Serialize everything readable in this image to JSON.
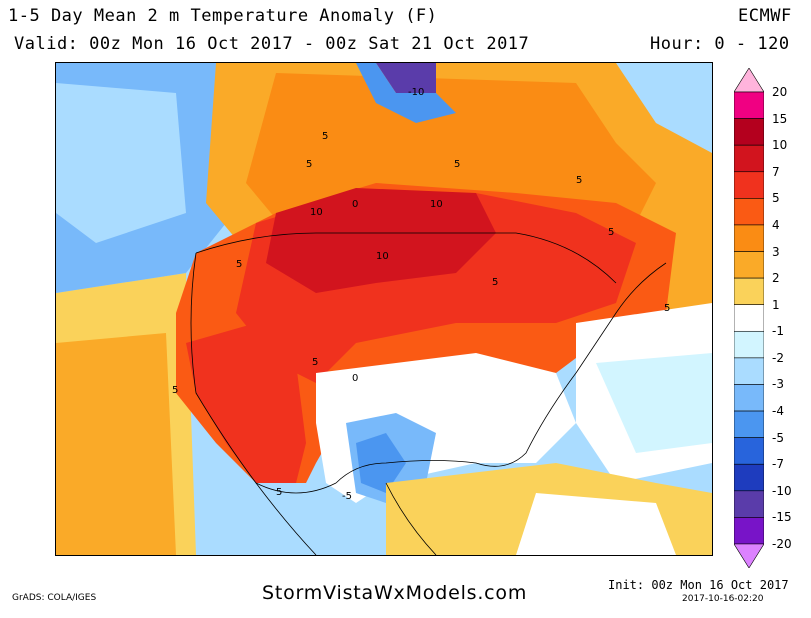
{
  "header": {
    "title": "1-5 Day Mean 2 m Temperature Anomaly (F)",
    "model": "ECMWF",
    "valid": "Valid: 00z Mon 16 Oct 2017 - 00z Sat 21 Oct 2017",
    "hour": "Hour: 0 - 120"
  },
  "colorbar": {
    "levels": [
      {
        "label": "20",
        "color": "#f00082"
      },
      {
        "label": "15",
        "color": "#b4001e"
      },
      {
        "label": "10",
        "color": "#d2141e"
      },
      {
        "label": "7",
        "color": "#f0321e"
      },
      {
        "label": "5",
        "color": "#fa5a14"
      },
      {
        "label": "4",
        "color": "#fa8c14"
      },
      {
        "label": "3",
        "color": "#faaa28"
      },
      {
        "label": "2",
        "color": "#fad25a"
      },
      {
        "label": "1",
        "color": "#ffffff"
      },
      {
        "label": "-1",
        "color": "#d2f5ff"
      },
      {
        "label": "-2",
        "color": "#aadcff"
      },
      {
        "label": "-3",
        "color": "#78b9fa"
      },
      {
        "label": "-4",
        "color": "#4b96f0"
      },
      {
        "label": "-5",
        "color": "#2864dc"
      },
      {
        "label": "-7",
        "color": "#1e3cbe"
      },
      {
        "label": "-10",
        "color": "#5a3caa"
      },
      {
        "label": "-15",
        "color": "#7814c8"
      },
      {
        "label": "-20",
        "color": "#a000dc"
      }
    ],
    "top_cap_color": "#ffb4dc",
    "bottom_cap_color": "#dc82ff"
  },
  "map_labels": [
    {
      "text": "-10"
    },
    {
      "text": "5"
    },
    {
      "text": "5"
    },
    {
      "text": "5"
    },
    {
      "text": "5"
    },
    {
      "text": "10"
    },
    {
      "text": "10"
    },
    {
      "text": "10"
    },
    {
      "text": "5"
    },
    {
      "text": "5"
    },
    {
      "text": "5"
    },
    {
      "text": "5"
    },
    {
      "text": "0"
    },
    {
      "text": "5"
    },
    {
      "text": "5"
    },
    {
      "text": "-5"
    },
    {
      "text": "5"
    },
    {
      "text": "0"
    }
  ],
  "footer": {
    "site": "StormVistaWxModels.com",
    "grads": "GrADS: COLA/IGES",
    "init": "Init: 00z Mon 16 Oct 2017",
    "timestamp": "2017-10-16-02:20"
  }
}
